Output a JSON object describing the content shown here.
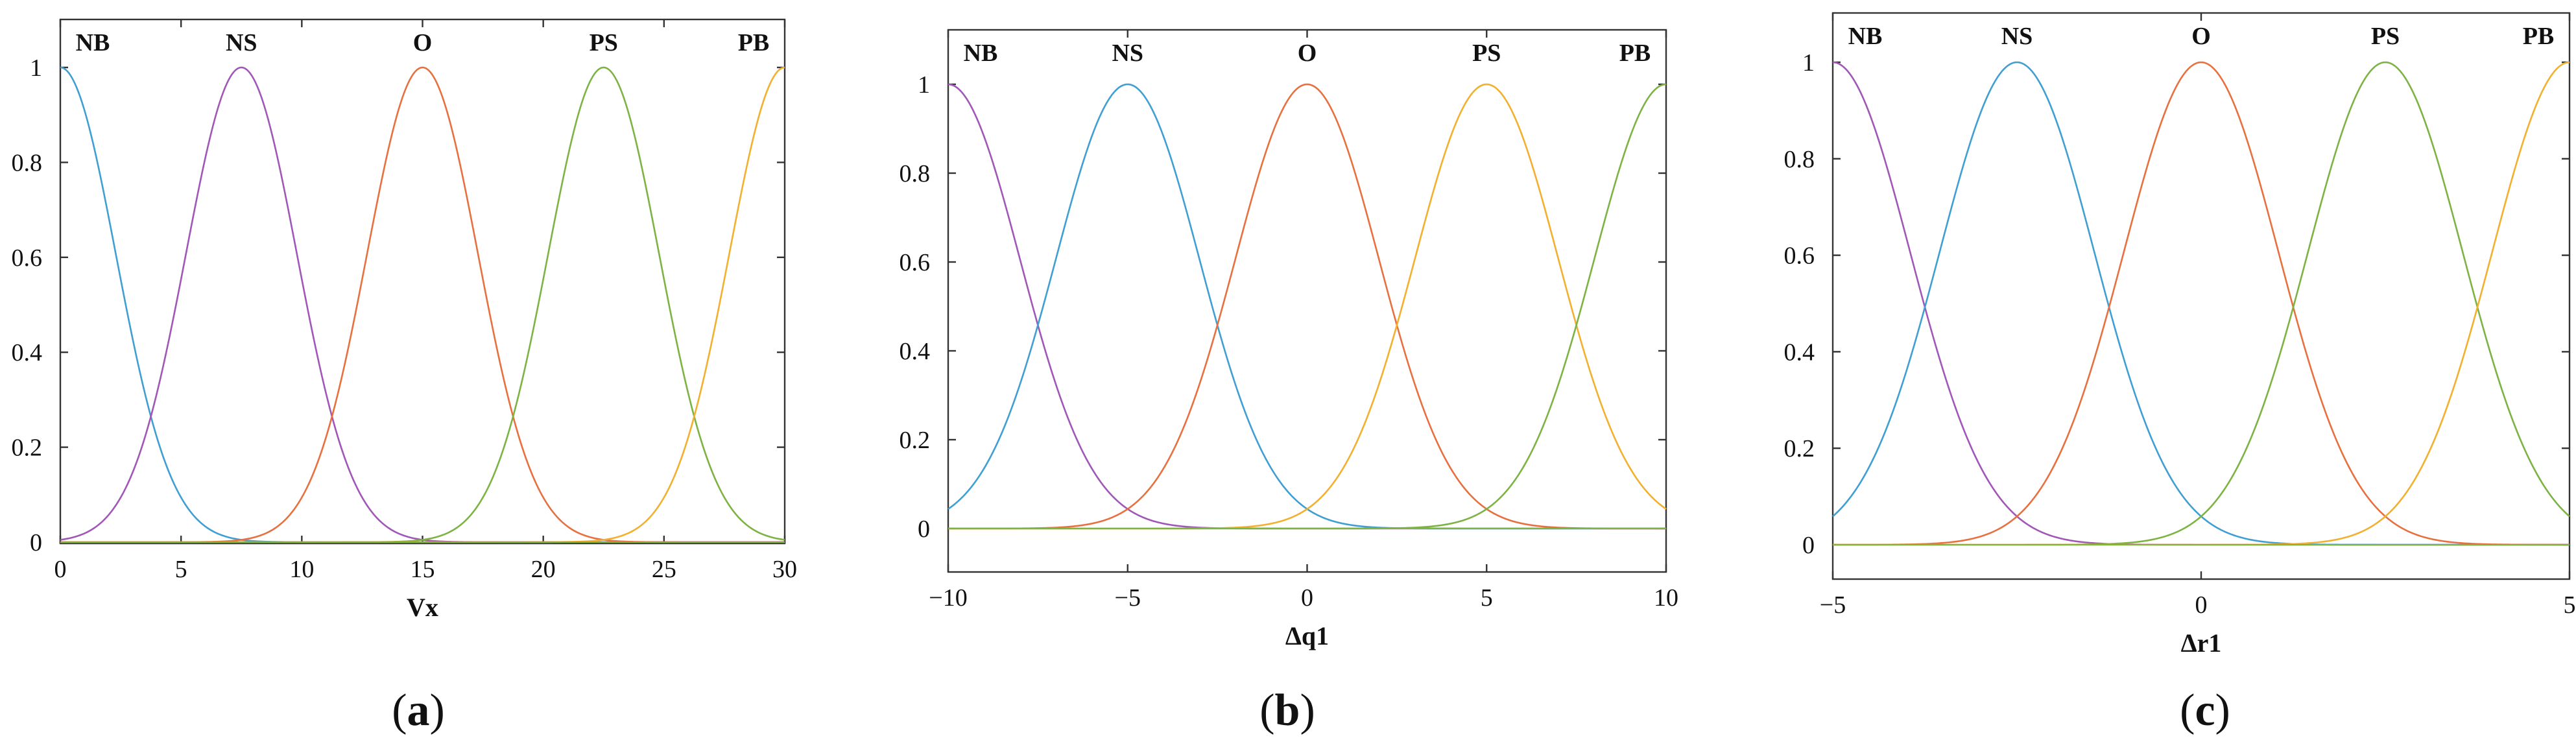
{
  "chart_data": [
    {
      "type": "line",
      "panel": "(a)",
      "xlabel": "Vx",
      "xlim": [
        0,
        30
      ],
      "ylim": [
        0,
        1
      ],
      "xticks": [
        0,
        5,
        10,
        15,
        20,
        25,
        30
      ],
      "yticks": [
        "0",
        "0.2",
        "0.4",
        "0.6",
        "0.8",
        "1"
      ],
      "sigma": 2.3,
      "series": [
        {
          "name": "NB",
          "center": 0,
          "color": "#9467bd"
        },
        {
          "name": "NS",
          "center": 7.5,
          "color": "#a157b7"
        },
        {
          "name": "O",
          "center": 15,
          "color": "#e8703f"
        },
        {
          "name": "PS",
          "center": 22.5,
          "color": "#7cb342"
        },
        {
          "name": "PB",
          "center": 30,
          "color": "#f2b02e"
        }
      ],
      "curve_colors": [
        "#3f9fd3",
        "#a157b7",
        "#e8703f",
        "#7cb342",
        "#f2b02e"
      ]
    },
    {
      "type": "line",
      "panel": "(b)",
      "xlabel": "Δq1",
      "xlim": [
        -10,
        10
      ],
      "ylim": [
        0,
        1
      ],
      "xticks": [
        -10,
        -5,
        0,
        5,
        10
      ],
      "yticks": [
        "0",
        "0.2",
        "0.4",
        "0.6",
        "0.8",
        "1"
      ],
      "sigma": 2.0,
      "series": [
        {
          "name": "NB",
          "center": -10,
          "color": "#a157b7"
        },
        {
          "name": "NS",
          "center": -5,
          "color": "#3f9fd3"
        },
        {
          "name": "O",
          "center": 0,
          "color": "#e8703f"
        },
        {
          "name": "PS",
          "center": 5,
          "color": "#f2b02e"
        },
        {
          "name": "PB",
          "center": 10,
          "color": "#7cb342"
        }
      ]
    },
    {
      "type": "line",
      "panel": "(c)",
      "xlabel": "Δr1",
      "xlim": [
        -5,
        5
      ],
      "ylim": [
        0,
        1
      ],
      "xticks": [
        -5,
        0,
        5
      ],
      "yticks": [
        "0",
        "0.2",
        "0.4",
        "0.6",
        "0.8",
        "1"
      ],
      "sigma": 1.05,
      "series": [
        {
          "name": "NB",
          "center": -5,
          "color": "#a157b7"
        },
        {
          "name": "NS",
          "center": -2.5,
          "color": "#3f9fd3"
        },
        {
          "name": "O",
          "center": 0,
          "color": "#e8703f"
        },
        {
          "name": "PS",
          "center": 2.5,
          "color": "#7cb342"
        },
        {
          "name": "PB",
          "center": 5,
          "color": "#f2b02e"
        }
      ]
    }
  ]
}
